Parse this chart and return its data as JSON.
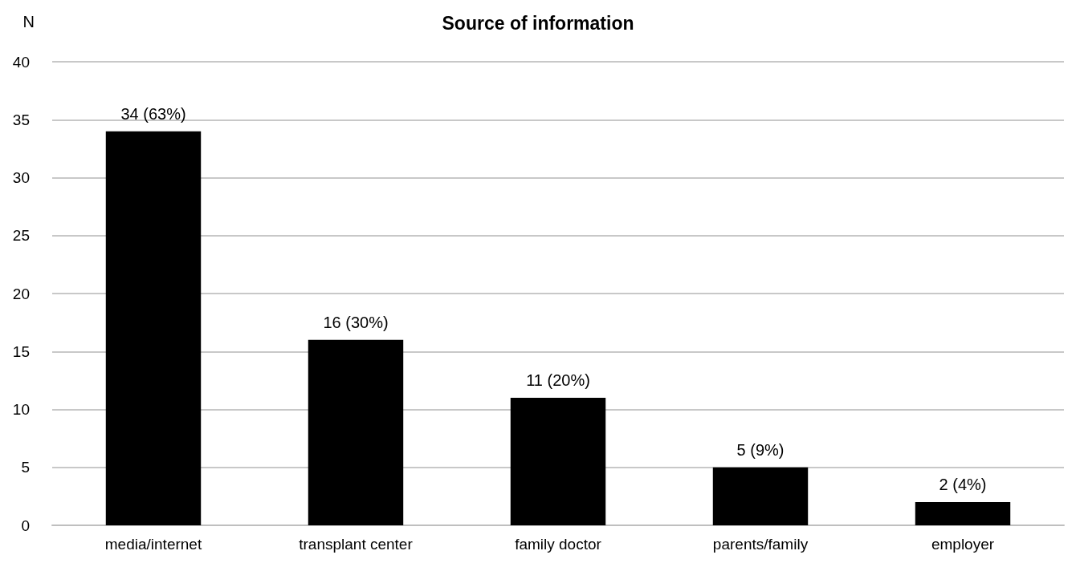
{
  "chart_data": {
    "type": "bar",
    "title": "Source of information",
    "ylabel": "N",
    "categories": [
      "media/internet",
      "transplant center",
      "family doctor",
      "parents/family",
      "employer"
    ],
    "values": [
      34,
      16,
      11,
      5,
      2
    ],
    "value_labels": [
      "34 (63%)",
      "16 (30%)",
      "11 (20%)",
      "5 (9%)",
      "2 (4%)"
    ],
    "color": "#000000",
    "ylim": [
      0,
      40
    ],
    "yticks": [
      0,
      5,
      10,
      15,
      20,
      25,
      30,
      35,
      40
    ],
    "grid": "y"
  }
}
